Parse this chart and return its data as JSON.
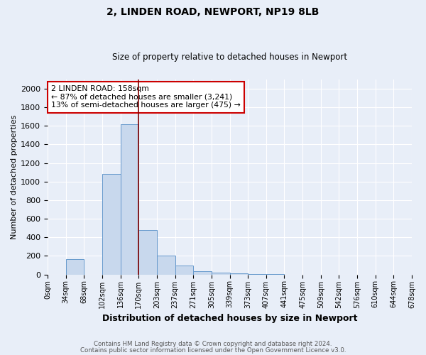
{
  "title1": "2, LINDEN ROAD, NEWPORT, NP19 8LB",
  "title2": "Size of property relative to detached houses in Newport",
  "xlabel": "Distribution of detached houses by size in Newport",
  "ylabel": "Number of detached properties",
  "footnote1": "Contains HM Land Registry data © Crown copyright and database right 2024.",
  "footnote2": "Contains public sector information licensed under the Open Government Licence v3.0.",
  "annotation_line1": "2 LINDEN ROAD: 158sqm",
  "annotation_line2": "← 87% of detached houses are smaller (3,241)",
  "annotation_line3": "13% of semi-detached houses are larger (475) →",
  "bar_color": "#c8d8ed",
  "bar_edge_color": "#6699cc",
  "vline_color": "#800000",
  "vline_x": 5.0,
  "bin_labels": [
    "0sqm",
    "34sqm",
    "68sqm",
    "102sqm",
    "136sqm",
    "170sqm",
    "203sqm",
    "237sqm",
    "271sqm",
    "305sqm",
    "339sqm",
    "373sqm",
    "407sqm",
    "441sqm",
    "475sqm",
    "509sqm",
    "542sqm",
    "576sqm",
    "610sqm",
    "644sqm",
    "678sqm"
  ],
  "bar_heights": [
    0,
    165,
    0,
    1080,
    1620,
    475,
    200,
    100,
    35,
    20,
    10,
    8,
    5,
    0,
    0,
    0,
    0,
    0,
    0,
    0
  ],
  "ylim": [
    0,
    2100
  ],
  "yticks": [
    0,
    200,
    400,
    600,
    800,
    1000,
    1200,
    1400,
    1600,
    1800,
    2000
  ],
  "bg_color": "#e8eef8",
  "plot_bg_color": "#e8eef8",
  "title_fontsize": 10,
  "subtitle_fontsize": 8.5,
  "ylabel_fontsize": 8,
  "xlabel_fontsize": 9,
  "tick_fontsize": 7,
  "ytick_fontsize": 8
}
